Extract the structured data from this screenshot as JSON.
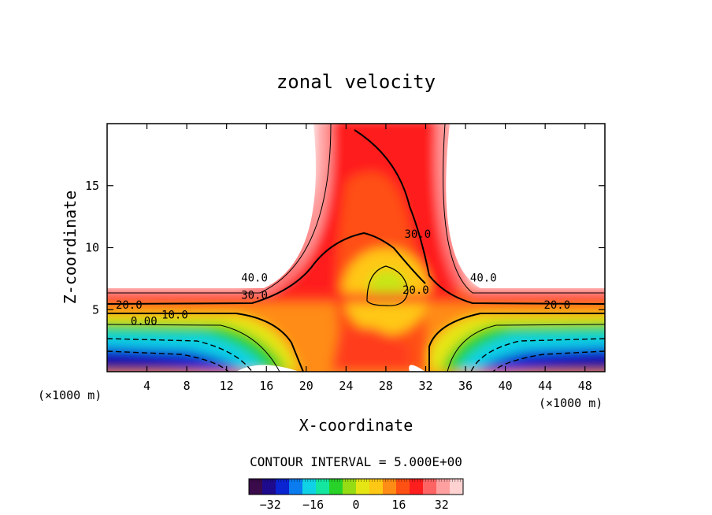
{
  "chart_data": {
    "type": "heatmap",
    "title": "zonal velocity",
    "xlabel": "X-coordinate",
    "ylabel": "Z-coordinate",
    "x_unit": "(×1000 m)",
    "xlim": [
      0,
      50
    ],
    "ylim": [
      0,
      20
    ],
    "x_ticks": [
      4,
      8,
      12,
      16,
      20,
      24,
      28,
      32,
      36,
      40,
      44,
      48
    ],
    "y_ticks": [
      5,
      10,
      15
    ],
    "contour_interval_label": "CONTOUR INTERVAL = 5.000E+00",
    "colorbar": {
      "min": -40,
      "max": 40,
      "ticks": [
        -32,
        -16,
        0,
        16,
        32
      ],
      "colors": [
        "#3a0a4a",
        "#1d0a8c",
        "#0a24d2",
        "#0a7cf0",
        "#10d2e6",
        "#14e6a0",
        "#28d228",
        "#96dc14",
        "#e6e614",
        "#ffc814",
        "#ff8c14",
        "#ff5014",
        "#ff1e1e",
        "#ff6464",
        "#ffa0a0",
        "#ffd2d2"
      ]
    },
    "contour_labels": [
      {
        "text": "40.0",
        "x": 14.8,
        "z": 7.6
      },
      {
        "text": "30.0",
        "x": 14.8,
        "z": 6.2
      },
      {
        "text": "20.0",
        "x": 2.2,
        "z": 5.4
      },
      {
        "text": "10.0",
        "x": 6.8,
        "z": 4.6
      },
      {
        "text": "0.00",
        "x": 3.7,
        "z": 4.1
      },
      {
        "text": "30.0",
        "x": 31.2,
        "z": 11.1
      },
      {
        "text": "20.0",
        "x": 31.0,
        "z": 6.6
      },
      {
        "text": "40.0",
        "x": 37.8,
        "z": 7.6
      },
      {
        "text": "20.0",
        "x": 45.2,
        "z": 5.4
      }
    ]
  }
}
